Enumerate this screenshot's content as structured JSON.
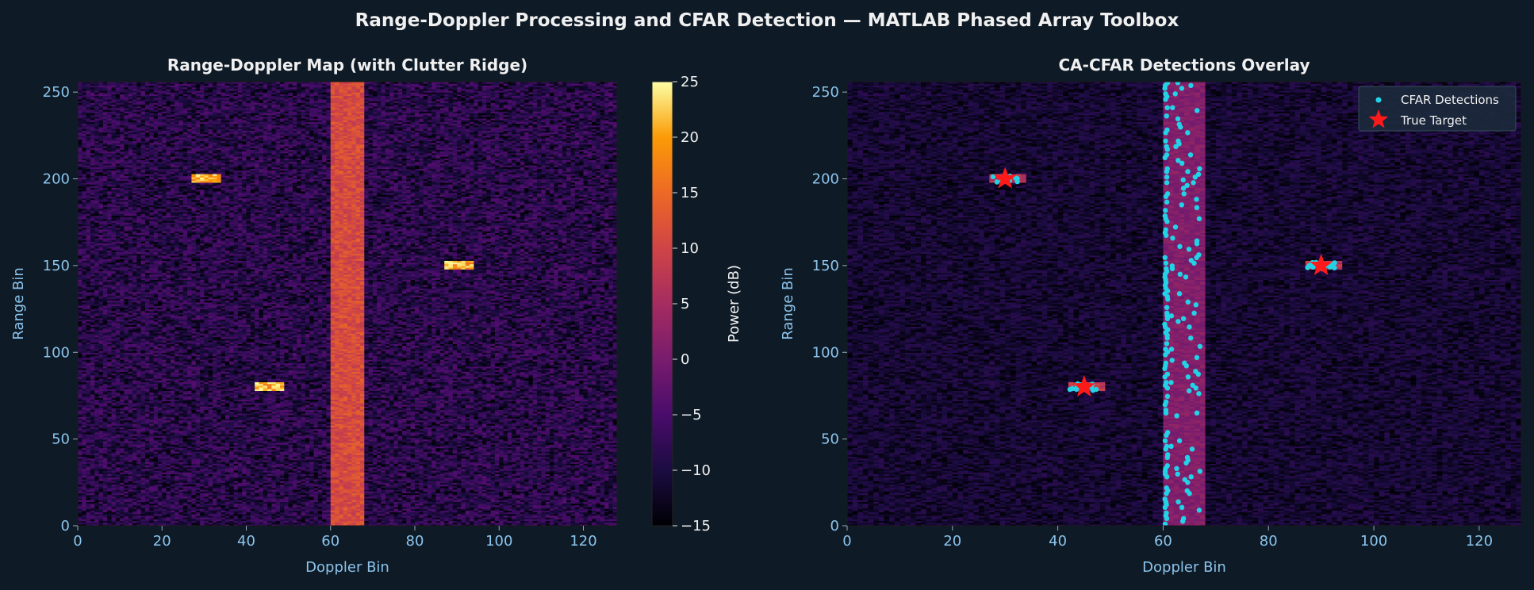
{
  "figure": {
    "suptitle": "Range-Doppler Processing and CFAR Detection — MATLAB Phased Array Toolbox"
  },
  "colors": {
    "background": "#0e1a26",
    "text_title": "#f0f0f0",
    "tick_label": "#8cc4ec",
    "axis_label": "#8cc4ec",
    "detections": "#22d3e8",
    "true_target": "#ff1a1a",
    "colormap": "inferno"
  },
  "chart_data": [
    {
      "type": "heatmap",
      "title": "Range-Doppler Map (with Clutter Ridge)",
      "xlabel": "Doppler Bin",
      "ylabel": "Range Bin",
      "xlim": [
        0,
        128
      ],
      "ylim": [
        0,
        256
      ],
      "xticks": [
        "0",
        "20",
        "40",
        "60",
        "80",
        "100",
        "120"
      ],
      "yticks": [
        "0",
        "50",
        "100",
        "150",
        "200",
        "250"
      ],
      "noise_floor_db": [
        -15,
        -5
      ],
      "clutter_ridge": {
        "doppler_range": [
          60,
          68
        ],
        "power_db": 12
      },
      "targets": [
        {
          "doppler": 30,
          "range": 200,
          "power_db": 24
        },
        {
          "doppler": 45,
          "range": 80,
          "power_db": 24
        },
        {
          "doppler": 90,
          "range": 150,
          "power_db": 24
        }
      ],
      "colorbar": {
        "label": "Power (dB)",
        "range": [
          -15,
          25
        ],
        "ticks": [
          "−15",
          "−10",
          "−5",
          "0",
          "5",
          "10",
          "15",
          "20",
          "25"
        ]
      }
    },
    {
      "type": "heatmap",
      "title": "CA-CFAR Detections Overlay",
      "xlabel": "Doppler Bin",
      "ylabel": "Range Bin",
      "xlim": [
        0,
        128
      ],
      "ylim": [
        0,
        256
      ],
      "xticks": [
        "0",
        "20",
        "40",
        "60",
        "80",
        "100",
        "120"
      ],
      "yticks": [
        "0",
        "50",
        "100",
        "150",
        "200",
        "250"
      ],
      "clutter_ridge": {
        "doppler_range": [
          60,
          68
        ]
      },
      "series": [
        {
          "name": "CFAR Detections",
          "marker": "dot"
        },
        {
          "name": "True Target",
          "marker": "star",
          "points": [
            {
              "x": 30,
              "y": 200
            },
            {
              "x": 45,
              "y": 80
            },
            {
              "x": 90,
              "y": 150
            }
          ]
        }
      ],
      "legend": {
        "placement": "top-right",
        "entries": [
          "CFAR Detections",
          "True Target"
        ]
      }
    }
  ]
}
